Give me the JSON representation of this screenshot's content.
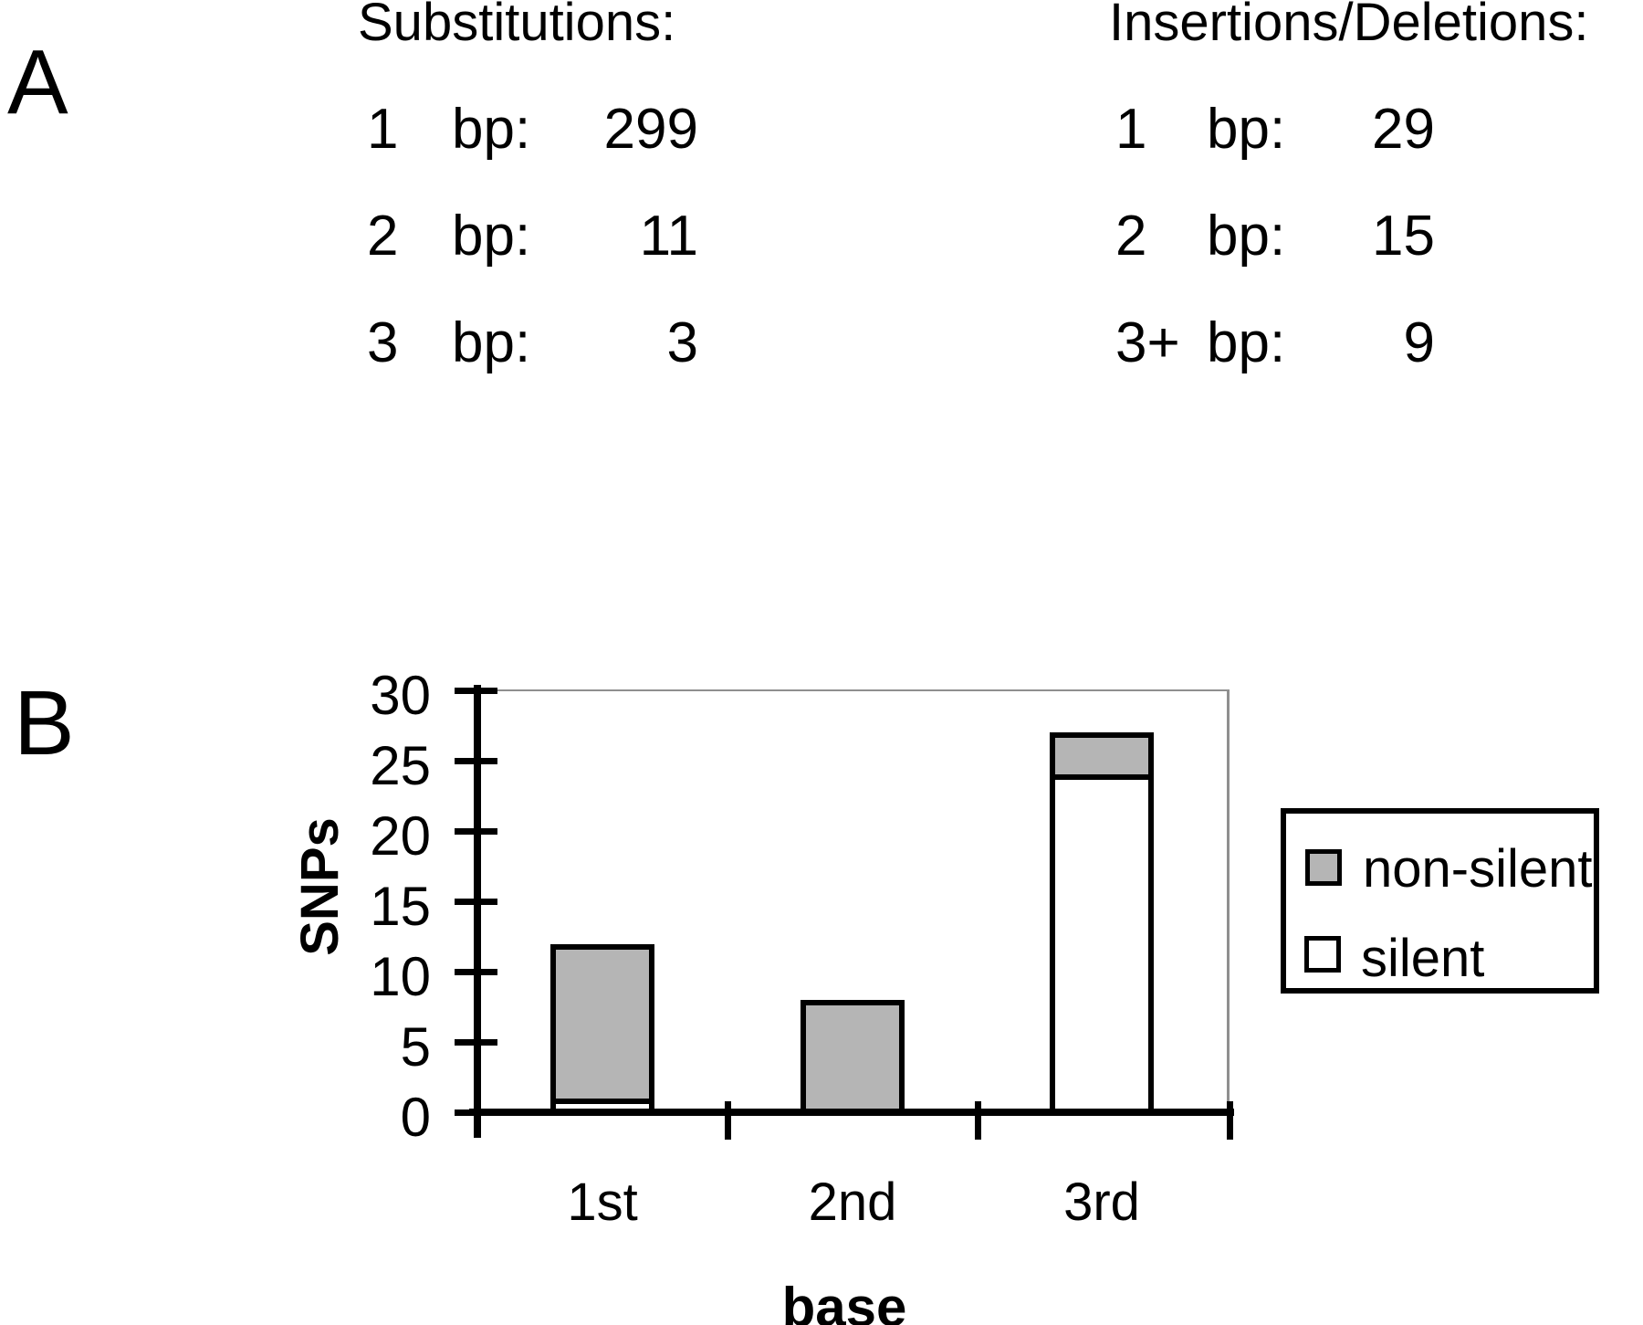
{
  "panel_a": {
    "label": "A",
    "substitutions": {
      "heading": "Substitutions:",
      "rows": [
        {
          "size": "1",
          "unit": "bp:",
          "count": "299"
        },
        {
          "size": "2",
          "unit": "bp:",
          "count": "11"
        },
        {
          "size": "3",
          "unit": "bp:",
          "count": "3"
        }
      ]
    },
    "insertions_deletions": {
      "heading": "Insertions/Deletions:",
      "rows": [
        {
          "size": "1",
          "unit": "bp:",
          "count": "29"
        },
        {
          "size": "2",
          "unit": "bp:",
          "count": "15"
        },
        {
          "size": "3+",
          "unit": "bp:",
          "count": "9"
        }
      ]
    }
  },
  "panel_b": {
    "label": "B",
    "chart_data": {
      "type": "bar",
      "stacked": true,
      "categories": [
        "1st",
        "2nd",
        "3rd"
      ],
      "series": [
        {
          "name": "silent",
          "color": "#ffffff",
          "values": [
            1,
            0,
            24
          ]
        },
        {
          "name": "non-silent",
          "color": "#b5b5b5",
          "values": [
            11,
            8,
            3
          ]
        }
      ],
      "stack_order_bottom_to_top": [
        "silent",
        "non-silent"
      ],
      "title": "",
      "xlabel": "base",
      "ylabel": "SNPs",
      "ylim": [
        0,
        30
      ],
      "yticks": [
        0,
        5,
        10,
        15,
        20,
        25,
        30
      ],
      "grid": "top line at y=30 only",
      "legend": {
        "position": "right",
        "items": [
          "non-silent",
          "silent"
        ]
      }
    }
  }
}
